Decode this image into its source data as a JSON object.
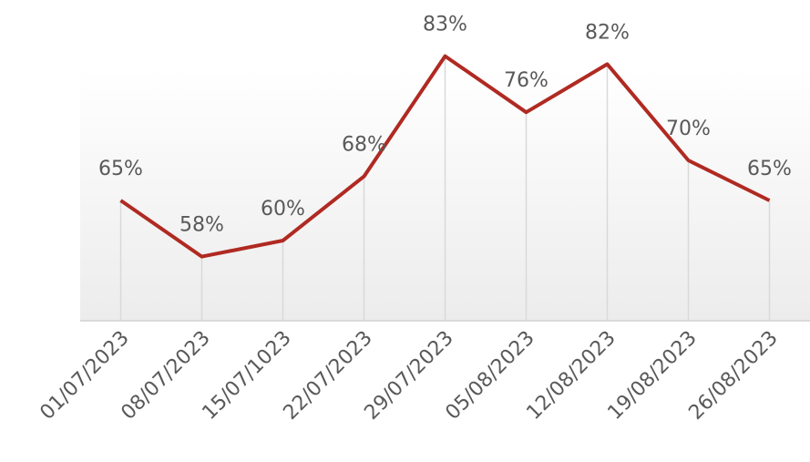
{
  "chart_data": {
    "type": "line",
    "categories": [
      "01/07/2023",
      "08/07/2023",
      "15/07/1023",
      "22/07/2023",
      "29/07/2023",
      "05/08/2023",
      "12/08/2023",
      "19/08/2023",
      "26/08/2023"
    ],
    "series": [
      {
        "color": "#b02a22",
        "values": [
          65,
          58,
          60,
          68,
          83,
          76,
          82,
          70,
          65
        ],
        "value_labels": [
          "65%",
          "58%",
          "60%",
          "68%",
          "83%",
          "76%",
          "82%",
          "70%",
          "65%"
        ]
      }
    ],
    "ylim": [
      50,
      90
    ]
  }
}
